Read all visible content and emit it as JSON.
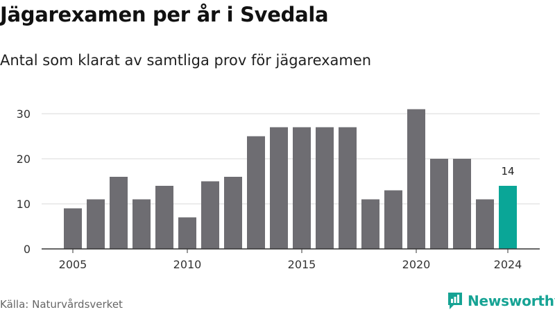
{
  "title": "Jägarexamen per år i Svedala",
  "subtitle": "Antal som klarat av samtliga prov för jägarexamen",
  "source": "Källa: Naturvårdsverket",
  "brand": {
    "name": "Newsworthy",
    "icon": "newsworthy-logo-icon",
    "color": "#16a394"
  },
  "colors": {
    "bar": "#6e6d72",
    "highlight": "#0aa697",
    "grid": "#d9d9d9",
    "axis": "#333333"
  },
  "chart_data": {
    "type": "bar",
    "x": [
      2005,
      2006,
      2007,
      2008,
      2009,
      2010,
      2011,
      2012,
      2013,
      2014,
      2015,
      2016,
      2017,
      2018,
      2019,
      2020,
      2021,
      2022,
      2023,
      2024
    ],
    "values": [
      9,
      11,
      16,
      11,
      14,
      7,
      15,
      16,
      25,
      27,
      27,
      27,
      27,
      11,
      13,
      31,
      20,
      20,
      11,
      14
    ],
    "highlight": {
      "x": 2024,
      "label": "14"
    },
    "xticks": [
      "2005",
      "2010",
      "2015",
      "2020",
      "2024"
    ],
    "yticks": [
      "0",
      "10",
      "20",
      "30"
    ],
    "ylim": [
      0,
      32
    ],
    "grid": true,
    "title": "Jägarexamen per år i Svedala",
    "subtitle": "Antal som klarat av samtliga prov för jägarexamen",
    "xlabel": "",
    "ylabel": ""
  }
}
